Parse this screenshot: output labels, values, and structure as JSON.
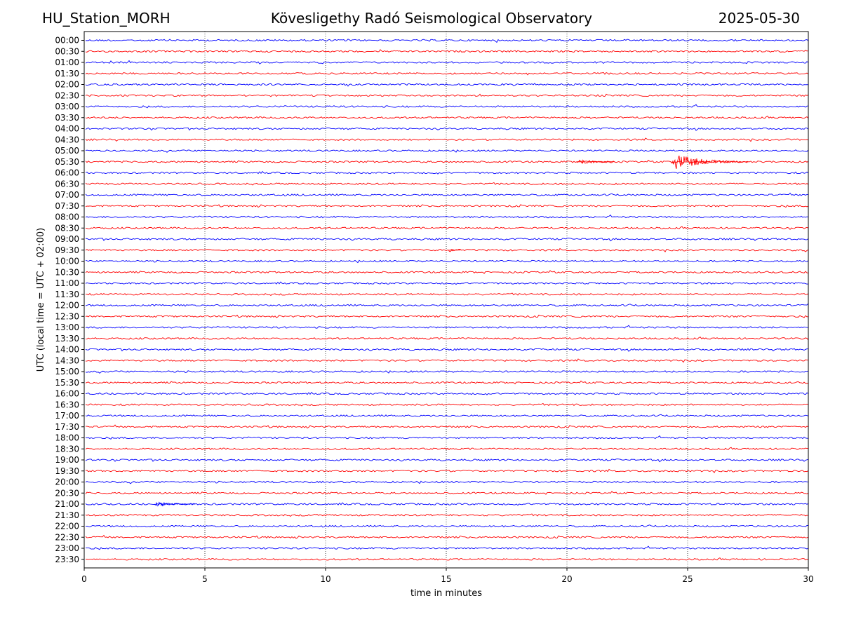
{
  "header": {
    "station": "HU_Station_MORH",
    "title": "Kövesligethy Radó Seismological Observatory",
    "date": "2025-05-30"
  },
  "chart_data": {
    "type": "line",
    "xlabel": "time in minutes",
    "ylabel": "UTC (local time = UTC + 02:00)",
    "xlim": [
      0,
      30
    ],
    "xticks": [
      "0",
      "5",
      "10",
      "15",
      "20",
      "25",
      "30"
    ],
    "vertical_gridlines_at": [
      5,
      10,
      15,
      20,
      25
    ],
    "grid": "vertical dotted",
    "row_labels": [
      "00:00",
      "00:30",
      "01:00",
      "01:30",
      "02:00",
      "02:30",
      "03:00",
      "03:30",
      "04:00",
      "04:30",
      "05:00",
      "05:30",
      "06:00",
      "06:30",
      "07:00",
      "07:30",
      "08:00",
      "08:30",
      "09:00",
      "09:30",
      "10:00",
      "10:30",
      "11:00",
      "11:30",
      "12:00",
      "12:30",
      "13:00",
      "13:30",
      "14:00",
      "14:30",
      "15:00",
      "15:30",
      "16:00",
      "16:30",
      "17:00",
      "17:30",
      "18:00",
      "18:30",
      "19:00",
      "19:30",
      "20:00",
      "20:30",
      "21:00",
      "21:30",
      "22:00",
      "22:30",
      "23:00",
      "23:30"
    ],
    "trace_colors": [
      "#0000ff",
      "#ff0000"
    ],
    "events": [
      {
        "row": "05:30",
        "start_min": 20.4,
        "end_min": 22.0,
        "amplitude": 0.35
      },
      {
        "row": "05:30",
        "start_min": 24.3,
        "end_min": 27.5,
        "amplitude": 0.95
      },
      {
        "row": "09:30",
        "start_min": 15.1,
        "end_min": 15.6,
        "amplitude": 0.25
      },
      {
        "row": "21:00",
        "start_min": 2.9,
        "end_min": 4.6,
        "amplitude": 0.35
      }
    ]
  }
}
